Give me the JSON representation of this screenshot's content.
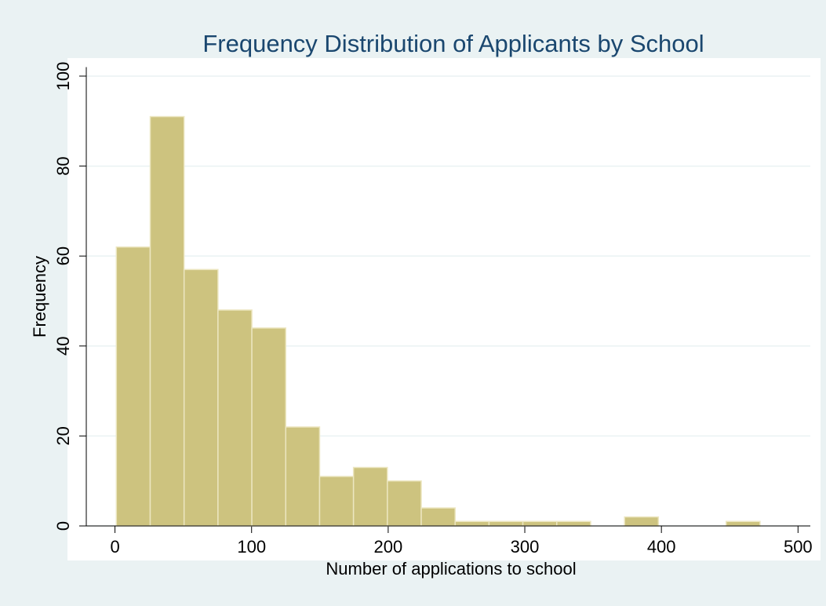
{
  "chart_data": {
    "type": "histogram",
    "title": "Frequency Distribution of Applicants by School",
    "xlabel": "Number of applications to school",
    "ylabel": "Frequency",
    "bins": [
      1,
      25.8,
      50.6,
      75.4,
      100.2,
      125,
      149.8,
      174.6,
      199.4,
      224.2,
      249,
      273.8,
      298.6,
      323.4,
      348.2,
      373,
      397.8,
      422.6,
      447.4,
      472.2
    ],
    "values": [
      62,
      91,
      57,
      48,
      44,
      22,
      11,
      13,
      10,
      4,
      1,
      1,
      1,
      1,
      0,
      2,
      0,
      0,
      1
    ],
    "color": "#cdc37f",
    "xlim": [
      -21,
      509
    ],
    "ylim": [
      0,
      102
    ],
    "xticks": [
      0,
      100,
      200,
      300,
      400,
      500
    ],
    "yticks": [
      0,
      20,
      40,
      60,
      80,
      100
    ],
    "grid": true
  }
}
